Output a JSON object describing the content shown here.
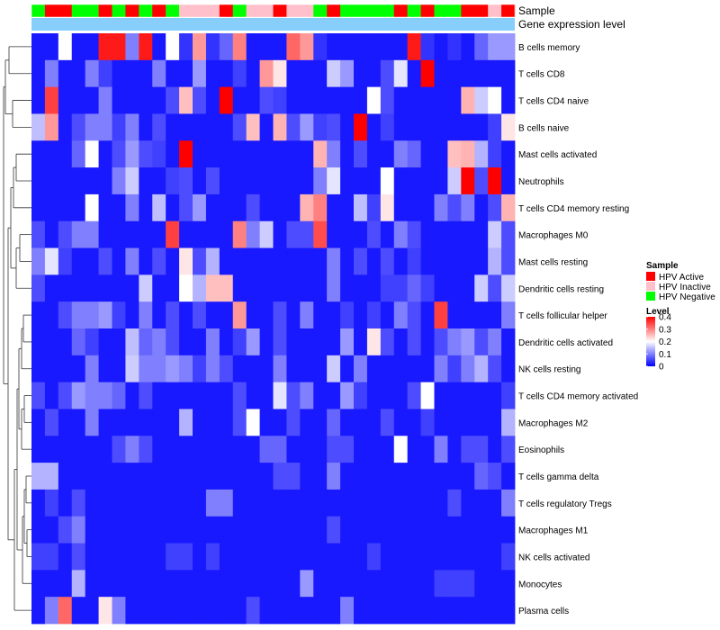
{
  "chart_data": {
    "type": "heatmap",
    "title": "",
    "annotation_rows": [
      "Sample",
      "Gene expression level"
    ],
    "rows": [
      "B cells memory",
      "T cells CD8",
      "T cells CD4 naive",
      "B cells naive",
      "Mast cells activated",
      "Neutrophils",
      "T cells CD4 memory resting",
      "Macrophages M0",
      "Mast cells resting",
      "Dendritic cells resting",
      "T cells follicular helper",
      "Dendritic cells activated",
      "NK cells resting",
      "T cells CD4 memory activated",
      "Macrophages M2",
      "Eosinophils",
      "T cells gamma delta",
      "T cells regulatory  Tregs",
      "Macrophages M1",
      "NK cells activated",
      "Monocytes",
      "Plasma cells"
    ],
    "sample_groups": [
      "G",
      "R",
      "R",
      "G",
      "G",
      "R",
      "G",
      "R",
      "G",
      "R",
      "G",
      "I",
      "I",
      "I",
      "R",
      "G",
      "I",
      "I",
      "R",
      "I",
      "I",
      "G",
      "R",
      "G",
      "G",
      "G",
      "G",
      "R",
      "G",
      "R",
      "G",
      "G",
      "R",
      "R",
      "I",
      "R"
    ],
    "legend": {
      "sample_title": "Sample",
      "sample_items": [
        {
          "key": "R",
          "label": "HPV Active",
          "color": "#ff0000"
        },
        {
          "key": "I",
          "label": "HPV Inactive",
          "color": "#ffc0cb"
        },
        {
          "key": "G",
          "label": "HPV Negative",
          "color": "#00ff00"
        }
      ],
      "level_title": "Level",
      "level_ticks": [
        "0.4",
        "0.3",
        "0.2",
        "0.1",
        "0"
      ],
      "level_tick_values": [
        0.4,
        0.3,
        0.2,
        0.1,
        0
      ]
    },
    "scale": {
      "min": 0,
      "mid": 0.2,
      "max": 0.4,
      "low_color": "#0000ff",
      "mid_color": "#ffffff",
      "high_color": "#ff0000"
    },
    "gene_bar_color": "#87cefa",
    "values": [
      [
        0.02,
        0.02,
        0.2,
        0.02,
        0.02,
        0.38,
        0.38,
        0.1,
        0.38,
        0.02,
        0.2,
        0.04,
        0.28,
        0.04,
        0.08,
        0.3,
        0.02,
        0.02,
        0.02,
        0.32,
        0.28,
        0.04,
        0.02,
        0.02,
        0.02,
        0.02,
        0.02,
        0.02,
        0.38,
        0.04,
        0.02,
        0.04,
        0.02,
        0.08,
        0.12,
        0.12
      ],
      [
        0.02,
        0.1,
        0.02,
        0.02,
        0.1,
        0.05,
        0.02,
        0.02,
        0.02,
        0.1,
        0.02,
        0.02,
        0.12,
        0.02,
        0.02,
        0.05,
        0.02,
        0.28,
        0.22,
        0.02,
        0.02,
        0.02,
        0.16,
        0.12,
        0.02,
        0.02,
        0.06,
        0.18,
        0.02,
        0.4,
        0.02,
        0.02,
        0.02,
        0.02,
        0.02,
        0.02
      ],
      [
        0.02,
        0.35,
        0.02,
        0.02,
        0.02,
        0.1,
        0.02,
        0.02,
        0.02,
        0.02,
        0.06,
        0.25,
        0.06,
        0.02,
        0.4,
        0.02,
        0.02,
        0.06,
        0.05,
        0.02,
        0.02,
        0.02,
        0.02,
        0.02,
        0.02,
        0.2,
        0.06,
        0.02,
        0.02,
        0.02,
        0.02,
        0.02,
        0.26,
        0.16,
        0.2,
        0.02
      ],
      [
        0.15,
        0.28,
        0.02,
        0.06,
        0.1,
        0.1,
        0.05,
        0.1,
        0.02,
        0.06,
        0.02,
        0.02,
        0.02,
        0.02,
        0.02,
        0.06,
        0.25,
        0.02,
        0.26,
        0.06,
        0.12,
        0.05,
        0.06,
        0.02,
        0.4,
        0.02,
        0.05,
        0.02,
        0.02,
        0.02,
        0.02,
        0.02,
        0.02,
        0.02,
        0.05,
        0.22
      ],
      [
        0.02,
        0.02,
        0.02,
        0.08,
        0.2,
        0.02,
        0.06,
        0.12,
        0.06,
        0.05,
        0.02,
        0.4,
        0.02,
        0.02,
        0.02,
        0.02,
        0.02,
        0.02,
        0.02,
        0.02,
        0.02,
        0.26,
        0.1,
        0.02,
        0.06,
        0.02,
        0.02,
        0.1,
        0.08,
        0.02,
        0.02,
        0.25,
        0.26,
        0.14,
        0.05,
        0.02
      ],
      [
        0.02,
        0.02,
        0.02,
        0.02,
        0.02,
        0.02,
        0.1,
        0.16,
        0.02,
        0.02,
        0.05,
        0.06,
        0.02,
        0.06,
        0.02,
        0.02,
        0.02,
        0.02,
        0.02,
        0.02,
        0.02,
        0.1,
        0.18,
        0.02,
        0.02,
        0.02,
        0.2,
        0.02,
        0.02,
        0.02,
        0.02,
        0.16,
        0.4,
        0.06,
        0.4,
        0.02
      ],
      [
        0.02,
        0.02,
        0.02,
        0.02,
        0.2,
        0.02,
        0.02,
        0.1,
        0.02,
        0.15,
        0.02,
        0.06,
        0.12,
        0.02,
        0.02,
        0.02,
        0.06,
        0.02,
        0.02,
        0.02,
        0.26,
        0.3,
        0.02,
        0.02,
        0.15,
        0.05,
        0.22,
        0.02,
        0.02,
        0.02,
        0.1,
        0.06,
        0.1,
        0.02,
        0.06,
        0.26
      ],
      [
        0.06,
        0.02,
        0.06,
        0.1,
        0.1,
        0.02,
        0.02,
        0.02,
        0.02,
        0.02,
        0.35,
        0.02,
        0.02,
        0.02,
        0.02,
        0.3,
        0.1,
        0.16,
        0.02,
        0.06,
        0.06,
        0.34,
        0.02,
        0.02,
        0.02,
        0.06,
        0.02,
        0.1,
        0.06,
        0.02,
        0.02,
        0.02,
        0.02,
        0.02,
        0.16,
        0.06
      ],
      [
        0.1,
        0.18,
        0.05,
        0.02,
        0.02,
        0.06,
        0.02,
        0.1,
        0.02,
        0.06,
        0.02,
        0.22,
        0.06,
        0.14,
        0.02,
        0.02,
        0.02,
        0.02,
        0.02,
        0.02,
        0.02,
        0.02,
        0.1,
        0.02,
        0.06,
        0.02,
        0.06,
        0.02,
        0.05,
        0.02,
        0.02,
        0.02,
        0.02,
        0.02,
        0.14,
        0.06
      ],
      [
        0.06,
        0.02,
        0.02,
        0.02,
        0.02,
        0.02,
        0.02,
        0.02,
        0.16,
        0.02,
        0.02,
        0.2,
        0.14,
        0.25,
        0.25,
        0.02,
        0.02,
        0.02,
        0.02,
        0.02,
        0.02,
        0.02,
        0.1,
        0.02,
        0.02,
        0.02,
        0.05,
        0.05,
        0.08,
        0.05,
        0.02,
        0.02,
        0.02,
        0.16,
        0.06,
        0.16
      ],
      [
        0.02,
        0.02,
        0.06,
        0.1,
        0.1,
        0.12,
        0.05,
        0.02,
        0.1,
        0.02,
        0.06,
        0.02,
        0.06,
        0.02,
        0.02,
        0.28,
        0.02,
        0.02,
        0.06,
        0.02,
        0.1,
        0.02,
        0.02,
        0.05,
        0.02,
        0.05,
        0.02,
        0.1,
        0.06,
        0.02,
        0.35,
        0.02,
        0.02,
        0.02,
        0.02,
        0.1
      ],
      [
        0.02,
        0.02,
        0.02,
        0.08,
        0.05,
        0.02,
        0.02,
        0.15,
        0.08,
        0.1,
        0.06,
        0.02,
        0.02,
        0.1,
        0.02,
        0.05,
        0.12,
        0.02,
        0.06,
        0.02,
        0.02,
        0.02,
        0.02,
        0.12,
        0.02,
        0.22,
        0.06,
        0.02,
        0.06,
        0.02,
        0.06,
        0.1,
        0.12,
        0.06,
        0.1,
        0.02
      ],
      [
        0.02,
        0.02,
        0.02,
        0.02,
        0.1,
        0.02,
        0.02,
        0.16,
        0.1,
        0.1,
        0.12,
        0.1,
        0.05,
        0.1,
        0.06,
        0.02,
        0.02,
        0.02,
        0.1,
        0.02,
        0.02,
        0.02,
        0.16,
        0.02,
        0.1,
        0.02,
        0.02,
        0.02,
        0.02,
        0.02,
        0.1,
        0.05,
        0.1,
        0.14,
        0.06,
        0.02
      ],
      [
        0.06,
        0.02,
        0.06,
        0.12,
        0.1,
        0.1,
        0.08,
        0.02,
        0.06,
        0.02,
        0.02,
        0.02,
        0.02,
        0.02,
        0.02,
        0.06,
        0.02,
        0.02,
        0.18,
        0.06,
        0.1,
        0.02,
        0.02,
        0.12,
        0.05,
        0.02,
        0.02,
        0.02,
        0.06,
        0.2,
        0.02,
        0.02,
        0.02,
        0.02,
        0.02,
        0.05
      ],
      [
        0.02,
        0.06,
        0.02,
        0.02,
        0.1,
        0.02,
        0.02,
        0.02,
        0.02,
        0.02,
        0.02,
        0.14,
        0.02,
        0.02,
        0.02,
        0.06,
        0.2,
        0.02,
        0.02,
        0.06,
        0.02,
        0.02,
        0.08,
        0.02,
        0.02,
        0.02,
        0.06,
        0.02,
        0.02,
        0.05,
        0.02,
        0.02,
        0.02,
        0.02,
        0.02,
        0.14
      ],
      [
        0.02,
        0.02,
        0.02,
        0.02,
        0.02,
        0.02,
        0.06,
        0.1,
        0.06,
        0.02,
        0.02,
        0.02,
        0.02,
        0.02,
        0.02,
        0.02,
        0.02,
        0.08,
        0.08,
        0.02,
        0.02,
        0.02,
        0.06,
        0.06,
        0.02,
        0.02,
        0.02,
        0.2,
        0.02,
        0.02,
        0.1,
        0.02,
        0.06,
        0.06,
        0.02,
        0.06
      ],
      [
        0.14,
        0.14,
        0.02,
        0.02,
        0.02,
        0.02,
        0.02,
        0.02,
        0.02,
        0.02,
        0.02,
        0.02,
        0.02,
        0.02,
        0.02,
        0.02,
        0.02,
        0.02,
        0.06,
        0.06,
        0.02,
        0.02,
        0.1,
        0.02,
        0.02,
        0.02,
        0.02,
        0.02,
        0.02,
        0.02,
        0.02,
        0.02,
        0.02,
        0.08,
        0.06,
        0.02
      ],
      [
        0.02,
        0.05,
        0.02,
        0.06,
        0.02,
        0.02,
        0.02,
        0.02,
        0.02,
        0.02,
        0.02,
        0.02,
        0.02,
        0.1,
        0.1,
        0.02,
        0.02,
        0.02,
        0.02,
        0.02,
        0.02,
        0.02,
        0.02,
        0.02,
        0.02,
        0.02,
        0.02,
        0.02,
        0.02,
        0.02,
        0.02,
        0.06,
        0.02,
        0.02,
        0.02,
        0.1
      ],
      [
        0.02,
        0.02,
        0.06,
        0.1,
        0.02,
        0.02,
        0.02,
        0.02,
        0.02,
        0.02,
        0.02,
        0.02,
        0.02,
        0.02,
        0.02,
        0.02,
        0.02,
        0.02,
        0.02,
        0.02,
        0.02,
        0.02,
        0.06,
        0.02,
        0.02,
        0.02,
        0.02,
        0.02,
        0.02,
        0.02,
        0.02,
        0.02,
        0.02,
        0.02,
        0.02,
        0.02
      ],
      [
        0.05,
        0.05,
        0.02,
        0.06,
        0.02,
        0.02,
        0.02,
        0.02,
        0.02,
        0.02,
        0.05,
        0.05,
        0.02,
        0.05,
        0.02,
        0.02,
        0.02,
        0.02,
        0.02,
        0.02,
        0.02,
        0.02,
        0.02,
        0.02,
        0.02,
        0.05,
        0.02,
        0.02,
        0.02,
        0.02,
        0.02,
        0.02,
        0.02,
        0.02,
        0.02,
        0.05
      ],
      [
        0.02,
        0.02,
        0.02,
        0.14,
        0.02,
        0.02,
        0.02,
        0.02,
        0.02,
        0.02,
        0.02,
        0.02,
        0.02,
        0.02,
        0.02,
        0.02,
        0.02,
        0.02,
        0.02,
        0.02,
        0.12,
        0.02,
        0.02,
        0.02,
        0.02,
        0.02,
        0.02,
        0.02,
        0.02,
        0.02,
        0.05,
        0.05,
        0.05,
        0.02,
        0.02,
        0.02
      ],
      [
        0.02,
        0.1,
        0.32,
        0.02,
        0.02,
        0.22,
        0.1,
        0.02,
        0.02,
        0.02,
        0.02,
        0.02,
        0.02,
        0.02,
        0.02,
        0.02,
        0.06,
        0.02,
        0.02,
        0.02,
        0.02,
        0.02,
        0.02,
        0.1,
        0.02,
        0.02,
        0.02,
        0.02,
        0.02,
        0.02,
        0.02,
        0.02,
        0.02,
        0.02,
        0.02,
        0.02
      ]
    ]
  }
}
